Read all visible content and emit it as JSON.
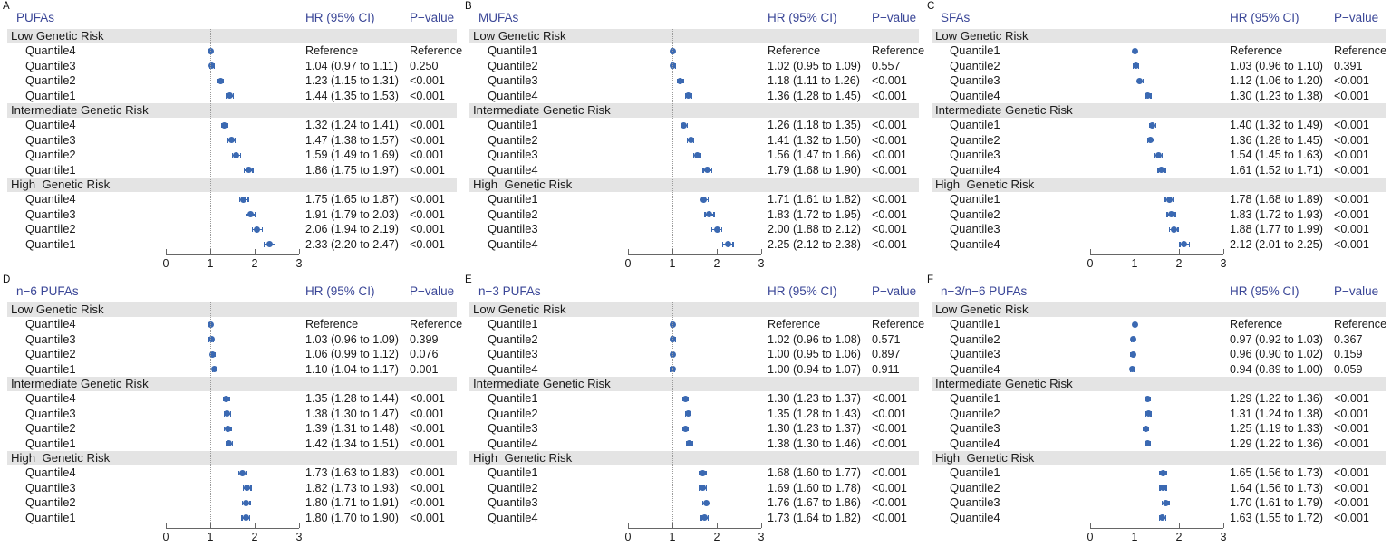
{
  "figure_title": "",
  "labels": {
    "reference": "Reference",
    "ci_joiner": "to"
  },
  "colors": {
    "header_text": "#3A4697",
    "marker": "#3B69B2",
    "group_band": "#E4E4E4",
    "axis": "#666666",
    "reference_line": "#9A9A9A",
    "text": "#1A1A1A"
  },
  "chart_data": [
    {
      "panel": "A",
      "title": "PUFAs",
      "type": "scatter",
      "subtype": "forest",
      "columns": [
        "HR (95% CI)",
        "P−value"
      ],
      "x_axis": {
        "ticks": [
          0,
          1,
          2,
          3
        ],
        "reference_line": 1,
        "xlim": [
          0,
          3
        ]
      },
      "groups": [
        {
          "label": "Low Genetic Risk",
          "rows": [
            {
              "label": "Quantile4",
              "ref": true,
              "est": 1.0,
              "p": "Reference"
            },
            {
              "label": "Quantile3",
              "est": 1.04,
              "lo": 0.97,
              "hi": 1.11,
              "p": "0.250"
            },
            {
              "label": "Quantile2",
              "est": 1.23,
              "lo": 1.15,
              "hi": 1.31,
              "p": "<0.001"
            },
            {
              "label": "Quantile1",
              "est": 1.44,
              "lo": 1.35,
              "hi": 1.53,
              "p": "<0.001"
            }
          ]
        },
        {
          "label": "Intermediate Genetic Risk",
          "rows": [
            {
              "label": "Quantile4",
              "est": 1.32,
              "lo": 1.24,
              "hi": 1.41,
              "p": "<0.001"
            },
            {
              "label": "Quantile3",
              "est": 1.47,
              "lo": 1.38,
              "hi": 1.57,
              "p": "<0.001"
            },
            {
              "label": "Quantile2",
              "est": 1.59,
              "lo": 1.49,
              "hi": 1.69,
              "p": "<0.001"
            },
            {
              "label": "Quantile1",
              "est": 1.86,
              "lo": 1.75,
              "hi": 1.97,
              "p": "<0.001"
            }
          ]
        },
        {
          "label": "High  Genetic Risk",
          "rows": [
            {
              "label": "Quantile4",
              "est": 1.75,
              "lo": 1.65,
              "hi": 1.87,
              "p": "<0.001"
            },
            {
              "label": "Quantile3",
              "est": 1.91,
              "lo": 1.79,
              "hi": 2.03,
              "p": "<0.001"
            },
            {
              "label": "Quantile2",
              "est": 2.06,
              "lo": 1.94,
              "hi": 2.19,
              "p": "<0.001"
            },
            {
              "label": "Quantile1",
              "est": 2.33,
              "lo": 2.2,
              "hi": 2.47,
              "p": "<0.001"
            }
          ]
        }
      ]
    },
    {
      "panel": "B",
      "title": "MUFAs",
      "type": "scatter",
      "subtype": "forest",
      "columns": [
        "HR (95% CI)",
        "P−value"
      ],
      "x_axis": {
        "ticks": [
          0,
          1,
          2,
          3
        ],
        "reference_line": 1,
        "xlim": [
          0,
          3
        ]
      },
      "groups": [
        {
          "label": "Low Genetic Risk",
          "rows": [
            {
              "label": "Quantile1",
              "ref": true,
              "est": 1.0,
              "p": "Reference"
            },
            {
              "label": "Quantile2",
              "est": 1.02,
              "lo": 0.95,
              "hi": 1.09,
              "p": "0.557"
            },
            {
              "label": "Quantile3",
              "est": 1.18,
              "lo": 1.11,
              "hi": 1.26,
              "p": "<0.001"
            },
            {
              "label": "Quantile4",
              "est": 1.36,
              "lo": 1.28,
              "hi": 1.45,
              "p": "<0.001"
            }
          ]
        },
        {
          "label": "Intermediate Genetic Risk",
          "rows": [
            {
              "label": "Quantile1",
              "est": 1.26,
              "lo": 1.18,
              "hi": 1.35,
              "p": "<0.001"
            },
            {
              "label": "Quantile2",
              "est": 1.41,
              "lo": 1.32,
              "hi": 1.5,
              "p": "<0.001"
            },
            {
              "label": "Quantile3",
              "est": 1.56,
              "lo": 1.47,
              "hi": 1.66,
              "p": "<0.001"
            },
            {
              "label": "Quantile4",
              "est": 1.79,
              "lo": 1.68,
              "hi": 1.9,
              "p": "<0.001"
            }
          ]
        },
        {
          "label": "High  Genetic Risk",
          "rows": [
            {
              "label": "Quantile1",
              "est": 1.71,
              "lo": 1.61,
              "hi": 1.82,
              "p": "<0.001"
            },
            {
              "label": "Quantile2",
              "est": 1.83,
              "lo": 1.72,
              "hi": 1.95,
              "p": "<0.001"
            },
            {
              "label": "Quantile3",
              "est": 2.0,
              "lo": 1.88,
              "hi": 2.12,
              "p": "<0.001"
            },
            {
              "label": "Quantile4",
              "est": 2.25,
              "lo": 2.12,
              "hi": 2.38,
              "p": "<0.001"
            }
          ]
        }
      ]
    },
    {
      "panel": "C",
      "title": "SFAs",
      "type": "scatter",
      "subtype": "forest",
      "columns": [
        "HR (95% CI)",
        "P−value"
      ],
      "x_axis": {
        "ticks": [
          0,
          1,
          2,
          3
        ],
        "reference_line": 1,
        "xlim": [
          0,
          3
        ]
      },
      "groups": [
        {
          "label": "Low Genetic Risk",
          "rows": [
            {
              "label": "Quantile1",
              "ref": true,
              "est": 1.0,
              "p": "Reference"
            },
            {
              "label": "Quantile2",
              "est": 1.03,
              "lo": 0.96,
              "hi": 1.1,
              "p": "0.391"
            },
            {
              "label": "Quantile3",
              "est": 1.12,
              "lo": 1.06,
              "hi": 1.2,
              "p": "<0.001"
            },
            {
              "label": "Quantile4",
              "est": 1.3,
              "lo": 1.23,
              "hi": 1.38,
              "p": "<0.001"
            }
          ]
        },
        {
          "label": "Intermediate Genetic Risk",
          "rows": [
            {
              "label": "Quantile1",
              "est": 1.4,
              "lo": 1.32,
              "hi": 1.49,
              "p": "<0.001"
            },
            {
              "label": "Quantile2",
              "est": 1.36,
              "lo": 1.28,
              "hi": 1.45,
              "p": "<0.001"
            },
            {
              "label": "Quantile3",
              "est": 1.54,
              "lo": 1.45,
              "hi": 1.63,
              "p": "<0.001"
            },
            {
              "label": "Quantile4",
              "est": 1.61,
              "lo": 1.52,
              "hi": 1.71,
              "p": "<0.001"
            }
          ]
        },
        {
          "label": "High  Genetic Risk",
          "rows": [
            {
              "label": "Quantile1",
              "est": 1.78,
              "lo": 1.68,
              "hi": 1.89,
              "p": "<0.001"
            },
            {
              "label": "Quantile2",
              "est": 1.83,
              "lo": 1.72,
              "hi": 1.93,
              "p": "<0.001"
            },
            {
              "label": "Quantile3",
              "est": 1.88,
              "lo": 1.77,
              "hi": 1.99,
              "p": "<0.001"
            },
            {
              "label": "Quantile4",
              "est": 2.12,
              "lo": 2.01,
              "hi": 2.25,
              "p": "<0.001"
            }
          ]
        }
      ]
    },
    {
      "panel": "D",
      "title": "n−6 PUFAs",
      "type": "scatter",
      "subtype": "forest",
      "columns": [
        "HR (95% CI)",
        "P−value"
      ],
      "x_axis": {
        "ticks": [
          0,
          1,
          2,
          3
        ],
        "reference_line": 1,
        "xlim": [
          0,
          3
        ]
      },
      "groups": [
        {
          "label": "Low Genetic Risk",
          "rows": [
            {
              "label": "Quantile4",
              "ref": true,
              "est": 1.0,
              "p": "Reference"
            },
            {
              "label": "Quantile3",
              "est": 1.03,
              "lo": 0.96,
              "hi": 1.09,
              "p": "0.399"
            },
            {
              "label": "Quantile2",
              "est": 1.06,
              "lo": 0.99,
              "hi": 1.12,
              "p": "0.076"
            },
            {
              "label": "Quantile1",
              "est": 1.1,
              "lo": 1.04,
              "hi": 1.17,
              "p": "0.001"
            }
          ]
        },
        {
          "label": "Intermediate Genetic Risk",
          "rows": [
            {
              "label": "Quantile4",
              "est": 1.35,
              "lo": 1.28,
              "hi": 1.44,
              "p": "<0.001"
            },
            {
              "label": "Quantile3",
              "est": 1.38,
              "lo": 1.3,
              "hi": 1.47,
              "p": "<0.001"
            },
            {
              "label": "Quantile2",
              "est": 1.39,
              "lo": 1.31,
              "hi": 1.48,
              "p": "<0.001"
            },
            {
              "label": "Quantile1",
              "est": 1.42,
              "lo": 1.34,
              "hi": 1.51,
              "p": "<0.001"
            }
          ]
        },
        {
          "label": "High  Genetic Risk",
          "rows": [
            {
              "label": "Quantile4",
              "est": 1.73,
              "lo": 1.63,
              "hi": 1.83,
              "p": "<0.001"
            },
            {
              "label": "Quantile3",
              "est": 1.82,
              "lo": 1.73,
              "hi": 1.93,
              "p": "<0.001"
            },
            {
              "label": "Quantile2",
              "est": 1.8,
              "lo": 1.71,
              "hi": 1.91,
              "p": "<0.001"
            },
            {
              "label": "Quantile1",
              "est": 1.8,
              "lo": 1.7,
              "hi": 1.9,
              "p": "<0.001"
            }
          ]
        }
      ]
    },
    {
      "panel": "E",
      "title": "n−3 PUFAs",
      "type": "scatter",
      "subtype": "forest",
      "columns": [
        "HR (95% CI)",
        "P−value"
      ],
      "x_axis": {
        "ticks": [
          0,
          1,
          2,
          3
        ],
        "reference_line": 1,
        "xlim": [
          0,
          3
        ]
      },
      "groups": [
        {
          "label": "Low Genetic Risk",
          "rows": [
            {
              "label": "Quantile1",
              "ref": true,
              "est": 1.0,
              "p": "Reference"
            },
            {
              "label": "Quantile2",
              "est": 1.02,
              "lo": 0.96,
              "hi": 1.08,
              "p": "0.571"
            },
            {
              "label": "Quantile3",
              "est": 1.0,
              "lo": 0.95,
              "hi": 1.06,
              "p": "0.897"
            },
            {
              "label": "Quantile4",
              "est": 1.0,
              "lo": 0.94,
              "hi": 1.07,
              "p": "0.911"
            }
          ]
        },
        {
          "label": "Intermediate Genetic Risk",
          "rows": [
            {
              "label": "Quantile1",
              "est": 1.3,
              "lo": 1.23,
              "hi": 1.37,
              "p": "<0.001"
            },
            {
              "label": "Quantile2",
              "est": 1.35,
              "lo": 1.28,
              "hi": 1.43,
              "p": "<0.001"
            },
            {
              "label": "Quantile3",
              "est": 1.3,
              "lo": 1.23,
              "hi": 1.37,
              "p": "<0.001"
            },
            {
              "label": "Quantile4",
              "est": 1.38,
              "lo": 1.3,
              "hi": 1.46,
              "p": "<0.001"
            }
          ]
        },
        {
          "label": "High  Genetic Risk",
          "rows": [
            {
              "label": "Quantile1",
              "est": 1.68,
              "lo": 1.6,
              "hi": 1.77,
              "p": "<0.001"
            },
            {
              "label": "Quantile2",
              "est": 1.69,
              "lo": 1.6,
              "hi": 1.78,
              "p": "<0.001"
            },
            {
              "label": "Quantile3",
              "est": 1.76,
              "lo": 1.67,
              "hi": 1.86,
              "p": "<0.001"
            },
            {
              "label": "Quantile4",
              "est": 1.73,
              "lo": 1.64,
              "hi": 1.82,
              "p": "<0.001"
            }
          ]
        }
      ]
    },
    {
      "panel": "F",
      "title": "n−3/n−6 PUFAs",
      "type": "scatter",
      "subtype": "forest",
      "columns": [
        "HR (95% CI)",
        "P−value"
      ],
      "x_axis": {
        "ticks": [
          0,
          1,
          2,
          3
        ],
        "reference_line": 1,
        "xlim": [
          0,
          3
        ]
      },
      "groups": [
        {
          "label": "Low Genetic Risk",
          "rows": [
            {
              "label": "Quantile1",
              "ref": true,
              "est": 1.0,
              "p": "Reference"
            },
            {
              "label": "Quantile2",
              "est": 0.97,
              "lo": 0.92,
              "hi": 1.03,
              "p": "0.367"
            },
            {
              "label": "Quantile3",
              "est": 0.96,
              "lo": 0.9,
              "hi": 1.02,
              "p": "0.159"
            },
            {
              "label": "Quantile4",
              "est": 0.94,
              "lo": 0.89,
              "hi": 1.0,
              "p": "0.059"
            }
          ]
        },
        {
          "label": "Intermediate Genetic Risk",
          "rows": [
            {
              "label": "Quantile1",
              "est": 1.29,
              "lo": 1.22,
              "hi": 1.36,
              "p": "<0.001"
            },
            {
              "label": "Quantile2",
              "est": 1.31,
              "lo": 1.24,
              "hi": 1.38,
              "p": "<0.001"
            },
            {
              "label": "Quantile3",
              "est": 1.25,
              "lo": 1.19,
              "hi": 1.33,
              "p": "<0.001"
            },
            {
              "label": "Quantile4",
              "est": 1.29,
              "lo": 1.22,
              "hi": 1.36,
              "p": "<0.001"
            }
          ]
        },
        {
          "label": "High  Genetic Risk",
          "rows": [
            {
              "label": "Quantile1",
              "est": 1.65,
              "lo": 1.56,
              "hi": 1.73,
              "p": "<0.001"
            },
            {
              "label": "Quantile2",
              "est": 1.64,
              "lo": 1.56,
              "hi": 1.73,
              "p": "<0.001"
            },
            {
              "label": "Quantile3",
              "est": 1.7,
              "lo": 1.61,
              "hi": 1.79,
              "p": "<0.001"
            },
            {
              "label": "Quantile4",
              "est": 1.63,
              "lo": 1.55,
              "hi": 1.72,
              "p": "<0.001"
            }
          ]
        }
      ]
    }
  ]
}
